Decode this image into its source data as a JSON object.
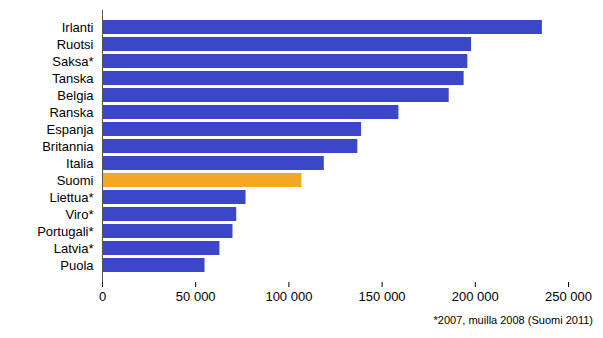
{
  "chart_data": {
    "type": "bar",
    "orientation": "horizontal",
    "categories": [
      "Irlanti",
      "Ruotsi",
      "Saksa*",
      "Tanska",
      "Belgia",
      "Ranska",
      "Espanja",
      "Britannia",
      "Italia",
      "Suomi",
      "Liettua*",
      "Viro*",
      "Portugali*",
      "Latvia*",
      "Puola"
    ],
    "values": [
      236000,
      198000,
      196000,
      194000,
      186000,
      159000,
      139000,
      137000,
      119000,
      107000,
      77000,
      72000,
      70000,
      63000,
      55000
    ],
    "colors": [
      "#3c46c8",
      "#3c46c8",
      "#3c46c8",
      "#3c46c8",
      "#3c46c8",
      "#3c46c8",
      "#3c46c8",
      "#3c46c8",
      "#3c46c8",
      "#f5a623",
      "#3c46c8",
      "#3c46c8",
      "#3c46c8",
      "#3c46c8",
      "#3c46c8"
    ],
    "xlim": [
      0,
      250000
    ],
    "xticks": [
      0,
      {
        "value": 50000,
        "label": "50 000"
      },
      {
        "value": 100000,
        "label": "100 000"
      },
      {
        "value": 150000,
        "label": "150 000"
      },
      {
        "value": 200000,
        "label": "200 000"
      },
      {
        "value": 250000,
        "label": "250 000"
      }
    ],
    "caption": "*2007, muilla 2008 (Suomi 2011)",
    "grid": false
  }
}
